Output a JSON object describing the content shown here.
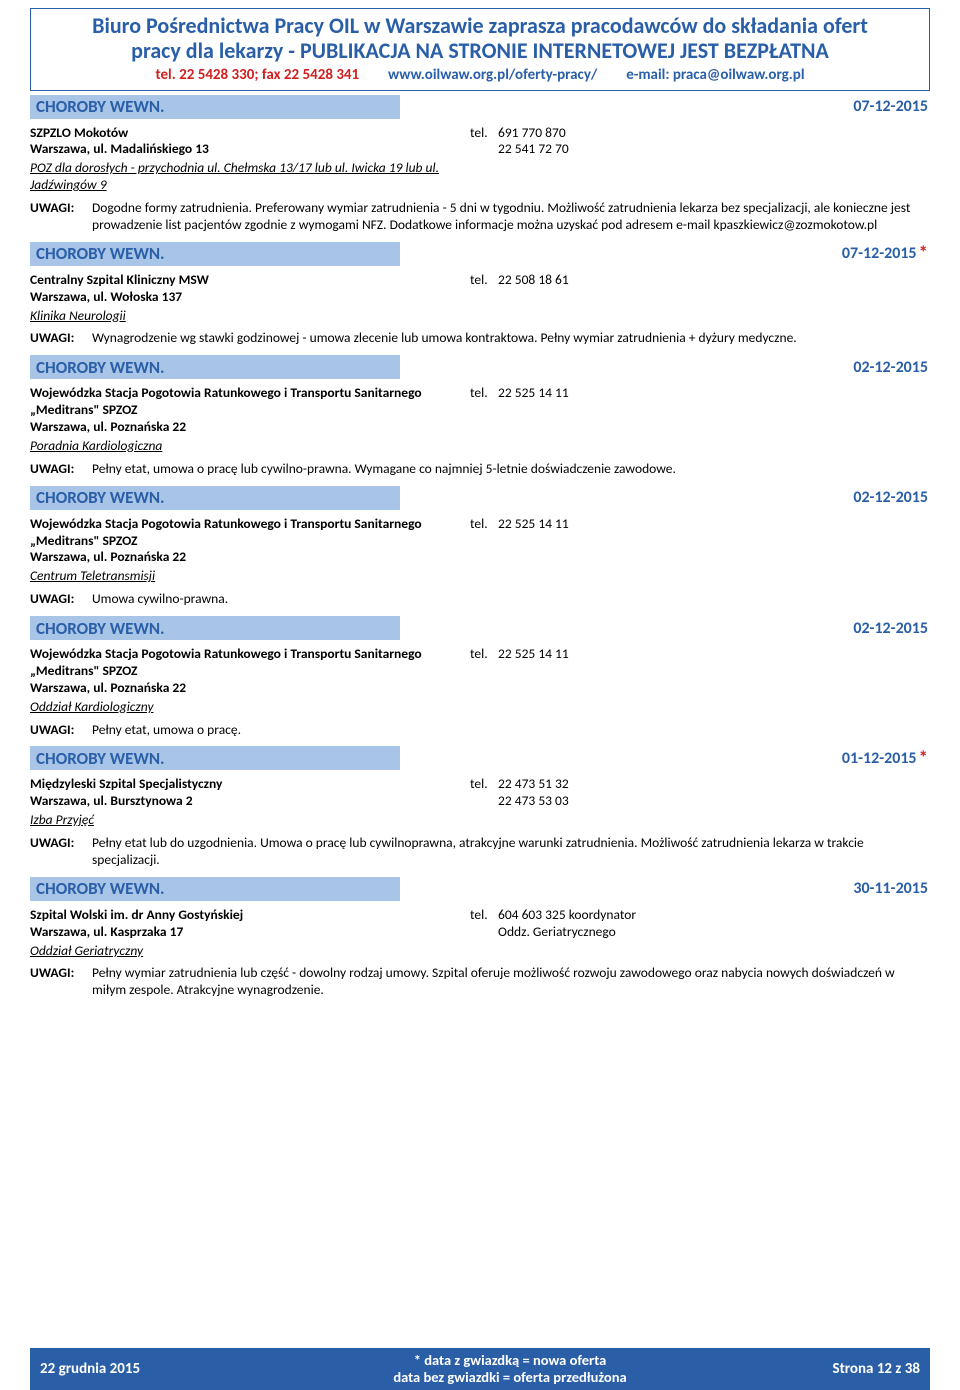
{
  "header": {
    "title_line1": "Biuro Pośrednictwa Pracy OIL w Warszawie zaprasza pracodawców do składania ofert",
    "title_line2": "pracy dla lekarzy - PUBLIKACJA NA STRONIE INTERNETOWEJ JEST BEZPŁATNA",
    "tel": "tel. 22 5428 330; fax 22 5428 341",
    "url": "www.oilwaw.org.pl/oferty-pracy/",
    "email": "e-mail: praca@oilwaw.org.pl"
  },
  "offers": [
    {
      "category": "CHOROBY WEWN.",
      "date": "07-12-2015",
      "star": false,
      "employer": "SZPZLO Mokotów",
      "address": "Warszawa, ul. Madalińskiego 13",
      "dept": "POZ dla dorosłych - przychodnia ul. Chełmska 13/17 lub ul. Iwicka 19 lub ul. Jadźwingów 9",
      "tel1": "691 770 870",
      "tel2": "22 541 72 70",
      "uwagi": "Dogodne formy zatrudnienia. Preferowany wymiar zatrudnienia - 5 dni w tygodniu. Możliwość zatrudnienia lekarza bez specjalizacji, ale konieczne jest prowadzenie list pacjentów zgodnie z wymogami NFZ. Dodatkowe informacje można uzyskać pod adresem e-mail kpaszkiewicz@zozmokotow.pl"
    },
    {
      "category": "CHOROBY WEWN.",
      "date": "07-12-2015",
      "star": true,
      "employer": "Centralny Szpital Kliniczny MSW",
      "address": "Warszawa, ul. Wołoska 137",
      "dept": "Klinika Neurologii",
      "tel1": "22 508 18 61",
      "tel2": "",
      "uwagi": "Wynagrodzenie wg stawki godzinowej - umowa zlecenie lub umowa kontraktowa. Pełny wymiar zatrudnienia + dyżury medyczne."
    },
    {
      "category": "CHOROBY WEWN.",
      "date": "02-12-2015",
      "star": false,
      "employer": "Wojewódzka Stacja Pogotowia Ratunkowego i Transportu Sanitarnego „Meditrans\" SPZOZ",
      "address": "Warszawa, ul. Poznańska 22",
      "dept": "Poradnia Kardiologiczna",
      "tel1": "22 525 14 11",
      "tel2": "",
      "uwagi": "Pełny etat, umowa o pracę lub cywilno-prawna. Wymagane co najmniej 5-letnie doświadczenie zawodowe."
    },
    {
      "category": "CHOROBY WEWN.",
      "date": "02-12-2015",
      "star": false,
      "employer": "Wojewódzka Stacja Pogotowia Ratunkowego i Transportu Sanitarnego „Meditrans\" SPZOZ",
      "address": "Warszawa, ul. Poznańska 22",
      "dept": "Centrum Teletransmisji",
      "tel1": "22 525 14 11",
      "tel2": "",
      "uwagi": "Umowa cywilno-prawna."
    },
    {
      "category": "CHOROBY WEWN.",
      "date": "02-12-2015",
      "star": false,
      "employer": "Wojewódzka Stacja Pogotowia Ratunkowego i Transportu Sanitarnego „Meditrans\" SPZOZ",
      "address": "Warszawa, ul. Poznańska 22",
      "dept": "Oddział Kardiologiczny",
      "tel1": "22 525 14 11",
      "tel2": "",
      "uwagi": "Pełny etat, umowa o pracę."
    },
    {
      "category": "CHOROBY WEWN.",
      "date": "01-12-2015",
      "star": true,
      "employer": "Międzyleski Szpital Specjalistyczny",
      "address": "Warszawa, ul. Bursztynowa 2",
      "dept": "Izba Przyjęć",
      "tel1": "22 473 51 32",
      "tel2": "22 473 53 03",
      "uwagi": "Pełny etat lub do uzgodnienia. Umowa o pracę lub cywilnoprawna, atrakcyjne warunki zatrudnienia. Możliwość zatrudnienia lekarza w trakcie specjalizacji."
    },
    {
      "category": "CHOROBY WEWN.",
      "date": "30-11-2015",
      "star": false,
      "employer": "Szpital Wolski im. dr Anny Gostyńskiej",
      "address": "Warszawa, ul. Kasprzaka 17",
      "dept": "Oddział Geriatryczny",
      "tel1": "604 603 325 koordynator",
      "tel2": "Oddz. Geriatrycznego",
      "tel2_nopad": true,
      "uwagi": "Pełny wymiar zatrudnienia lub część - dowolny rodzaj umowy. Szpital oferuje możliwość rozwoju zawodowego oraz nabycia nowych doświadczeń w miłym zespole. Atrakcyjne wynagrodzenie."
    }
  ],
  "labels": {
    "uwagi": "UWAGI:",
    "tel": "tel."
  },
  "footer": {
    "left": "22 grudnia 2015",
    "center1": "* data z gwiazdką = nowa oferta",
    "center2": "data bez gwiazdki = oferta przedłużona",
    "right": "Strona 12 z 38"
  }
}
